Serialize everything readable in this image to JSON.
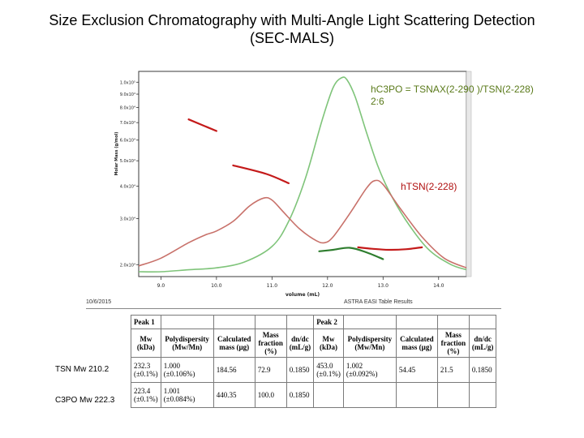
{
  "slide": {
    "title_line1": "Size Exclusion Chromatography with Multi-Angle Light Scattering Detection",
    "title_line2": "(SEC-MALS)"
  },
  "annotations": {
    "green_line1": "hC3PO = TSNAX(2-290 )/TSN(2-228)",
    "green_line2": "2:6",
    "red": "hTSN(2-228)"
  },
  "colors": {
    "green_trace": "#7fc47a",
    "pink_trace": "#c8716a",
    "red_mass": "#c41a1a",
    "green_mass": "#2e7d2e",
    "green_text": "#5a7a1a",
    "red_text": "#b01010"
  },
  "chart_data": {
    "type": "line",
    "xlabel": "volume (mL)",
    "ylabel": "Molar Mass (g/mol)",
    "xlim": [
      8.6,
      14.5
    ],
    "ylim_log": [
      18000,
      110000
    ],
    "y_scale": "log",
    "x_ticks": [
      "9.0",
      "10.0",
      "11.0",
      "12.0",
      "13.0",
      "14.0"
    ],
    "x_tick_values": [
      9,
      10,
      11,
      12,
      13,
      14
    ],
    "y_ticks": [
      "1.0x10⁵",
      "9.0x10⁴",
      "8.0x10⁴",
      "7.0x10⁴",
      "6.0x10⁴",
      "5.0x10⁴",
      "4.0x10⁴",
      "3.0x10⁴",
      "2.0x10⁴"
    ],
    "y_tick_values": [
      100000,
      90000,
      80000,
      70000,
      60000,
      50000,
      40000,
      30000,
      20000
    ],
    "series": [
      {
        "name": "hC3PO = TSNAX(2-290 )/TSN(2-228)",
        "kind": "detector",
        "color": "#7fc47a",
        "x": [
          8.6,
          9.0,
          9.5,
          10.0,
          10.5,
          11.0,
          11.3,
          11.6,
          11.9,
          12.1,
          12.25,
          12.35,
          12.5,
          12.7,
          12.9,
          13.1,
          13.4,
          13.8,
          14.2,
          14.5
        ],
        "y": [
          0.0,
          0.0,
          0.01,
          0.02,
          0.05,
          0.13,
          0.26,
          0.48,
          0.78,
          0.95,
          1.0,
          0.99,
          0.9,
          0.72,
          0.55,
          0.42,
          0.27,
          0.12,
          0.04,
          0.01
        ]
      },
      {
        "name": "hTSN(2-228)",
        "kind": "detector",
        "color": "#c8716a",
        "x": [
          8.6,
          9.0,
          9.5,
          9.8,
          10.0,
          10.3,
          10.6,
          10.85,
          11.0,
          11.2,
          11.5,
          11.8,
          11.95,
          12.1,
          12.4,
          12.7,
          12.85,
          13.0,
          13.3,
          13.7,
          14.1,
          14.5
        ],
        "y": [
          0.03,
          0.07,
          0.15,
          0.19,
          0.21,
          0.26,
          0.34,
          0.38,
          0.37,
          0.31,
          0.22,
          0.16,
          0.15,
          0.18,
          0.3,
          0.43,
          0.47,
          0.45,
          0.33,
          0.18,
          0.07,
          0.02
        ]
      },
      {
        "name": "mass-pink-1",
        "kind": "mass",
        "color": "#c41a1a",
        "x": [
          9.5,
          10.0
        ],
        "y": [
          72000,
          65000
        ]
      },
      {
        "name": "mass-pink-2",
        "kind": "mass",
        "color": "#c41a1a",
        "x": [
          10.3,
          10.9,
          11.3
        ],
        "y": [
          48000,
          44500,
          41000
        ]
      },
      {
        "name": "mass-hc3po",
        "kind": "mass",
        "color": "#2e7d2e",
        "x": [
          11.85,
          12.1,
          12.4,
          12.7,
          13.0
        ],
        "y": [
          22500,
          22800,
          23200,
          22300,
          21000
        ]
      },
      {
        "name": "mass-htsn",
        "kind": "mass",
        "color": "#c41a1a",
        "x": [
          12.55,
          12.8,
          13.1,
          13.4,
          13.7
        ],
        "y": [
          23300,
          23000,
          22800,
          22900,
          23300
        ]
      }
    ]
  },
  "results": {
    "date": "10/6/2015",
    "caption": "ASTRA EASI Table Results",
    "peak1_label": "Peak 1",
    "peak2_label": "Peak 2",
    "headers": [
      "Mw (kDa)",
      "Polydispersity (Mw/Mn)",
      "Calculated mass (µg)",
      "Mass fraction (%)",
      "dn/dc (mL/g)"
    ],
    "rows": [
      {
        "side_label": "TSN  Mw 210.2",
        "peak1": [
          "232.3 (±0.1%)",
          "1.000 (±0.106%)",
          "184.56",
          "72.9",
          "0.1850"
        ],
        "peak2": [
          "453.0 (±0.1%)",
          "1.002 (±0.092%)",
          "54.45",
          "21.5",
          "0.1850"
        ]
      },
      {
        "side_label": "C3PO Mw 222.3",
        "peak1": [
          "223.4 (±0.1%)",
          "1.001 (±0.084%)",
          "440.35",
          "100.0",
          "0.1850"
        ],
        "peak2": [
          "",
          "",
          "",
          "",
          ""
        ]
      }
    ]
  }
}
